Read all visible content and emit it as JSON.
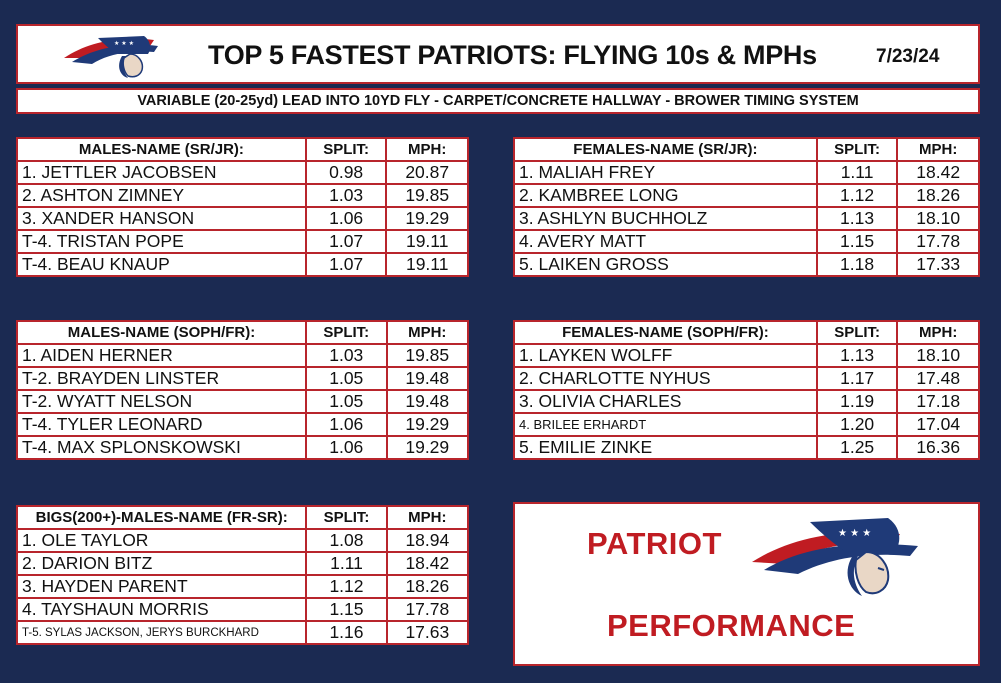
{
  "header": {
    "title": "TOP 5 FASTEST PATRIOTS: FLYING 10s & MPHs",
    "date": "7/23/24",
    "subtitle": "VARIABLE  (20-25yd) LEAD INTO 10YD FLY -  CARPET/CONCRETE HALLWAY - BROWER TIMING SYSTEM"
  },
  "colors": {
    "background": "#1b2a52",
    "border": "#b8252c",
    "brand_red": "#c01c22",
    "logo_navy": "#1f3a78"
  },
  "tables": {
    "males_srjr": {
      "headers": [
        "MALES-NAME (SR/JR):",
        "SPLIT:",
        "MPH:"
      ],
      "rows": [
        [
          "1. JETTLER JACOBSEN",
          "0.98",
          "20.87"
        ],
        [
          "2. ASHTON ZIMNEY",
          "1.03",
          "19.85"
        ],
        [
          "3. XANDER HANSON",
          "1.06",
          "19.29"
        ],
        [
          "T-4. TRISTAN POPE",
          "1.07",
          "19.11"
        ],
        [
          "T-4. BEAU KNAUP",
          "1.07",
          "19.11"
        ]
      ]
    },
    "females_srjr": {
      "headers": [
        "FEMALES-NAME (SR/JR):",
        "SPLIT:",
        "MPH:"
      ],
      "rows": [
        [
          "1. MALIAH FREY",
          "1.11",
          "18.42"
        ],
        [
          "2. KAMBREE LONG",
          "1.12",
          "18.26"
        ],
        [
          "3. ASHLYN BUCHHOLZ",
          "1.13",
          "18.10"
        ],
        [
          "4. AVERY MATT",
          "1.15",
          "17.78"
        ],
        [
          "5. LAIKEN GROSS",
          "1.18",
          "17.33"
        ]
      ]
    },
    "males_sophfr": {
      "headers": [
        "MALES-NAME (SOPH/FR):",
        "SPLIT:",
        "MPH:"
      ],
      "rows": [
        [
          "1. AIDEN HERNER",
          "1.03",
          "19.85"
        ],
        [
          "T-2. BRAYDEN LINSTER",
          "1.05",
          "19.48"
        ],
        [
          "T-2. WYATT NELSON",
          "1.05",
          "19.48"
        ],
        [
          "T-4. TYLER LEONARD",
          "1.06",
          "19.29"
        ],
        [
          "T-4. MAX SPLONSKOWSKI",
          "1.06",
          "19.29"
        ]
      ]
    },
    "females_sophfr": {
      "headers": [
        "FEMALES-NAME (SOPH/FR):",
        "SPLIT:",
        "MPH:"
      ],
      "rows": [
        [
          "1. LAYKEN WOLFF",
          "1.13",
          "18.10"
        ],
        [
          "2. CHARLOTTE NYHUS",
          "1.17",
          "17.48"
        ],
        [
          "3. OLIVIA CHARLES",
          "1.19",
          "17.18"
        ],
        [
          "4. BRILEE ERHARDT",
          "1.20",
          "17.04"
        ],
        [
          "5. EMILIE ZINKE",
          "1.25",
          "16.36"
        ]
      ]
    },
    "bigs": {
      "headers": [
        "BIGS(200+)-MALES-NAME (FR-SR):",
        "SPLIT:",
        "MPH:"
      ],
      "rows": [
        [
          "1. OLE TAYLOR",
          "1.08",
          "18.94"
        ],
        [
          "2. DARION BITZ",
          "1.11",
          "18.42"
        ],
        [
          "3. HAYDEN PARENT",
          "1.12",
          "18.26"
        ],
        [
          "4. TAYSHAUN MORRIS",
          "1.15",
          "17.78"
        ],
        [
          "T-5. SYLAS JACKSON, JERYS BURCKHARD",
          "1.16",
          "17.63"
        ]
      ]
    }
  },
  "brand": {
    "line1": "PATRIOT",
    "line2": "PERFORMANCE",
    "logo_icon": "patriot-head-logo"
  }
}
